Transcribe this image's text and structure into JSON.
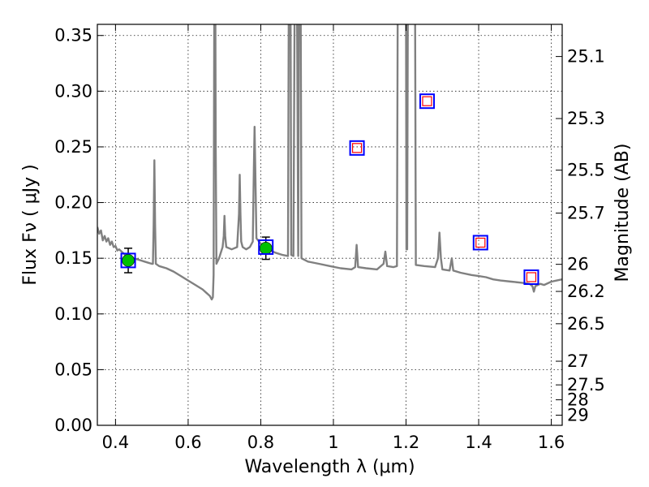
{
  "chart_data": {
    "type": "scatter",
    "xlabel": "Wavelength  λ (μm)",
    "ylabel": "Flux  Fν  ( μJy )",
    "ylabel_right": "Magnitude (AB)",
    "xlim": [
      0.35,
      1.63
    ],
    "ylim": [
      0.0,
      0.36
    ],
    "grid": true,
    "x_ticks": [
      0.4,
      0.6,
      0.8,
      1.0,
      1.2,
      1.4,
      1.6
    ],
    "x_tick_labels": [
      "0.4",
      "0.6",
      "0.8",
      "1",
      "1.2",
      "1.4",
      "1.6"
    ],
    "y_ticks": [
      0.0,
      0.05,
      0.1,
      0.15,
      0.2,
      0.25,
      0.3,
      0.35
    ],
    "y_tick_labels": [
      "0.00",
      "0.05",
      "0.10",
      "0.15",
      "0.20",
      "0.25",
      "0.30",
      "0.35"
    ],
    "right_ticks": [
      {
        "mag": 25.1,
        "label": "25.1"
      },
      {
        "mag": 25.3,
        "label": "25.3"
      },
      {
        "mag": 25.5,
        "label": "25.5"
      },
      {
        "mag": 25.7,
        "label": "25.7"
      },
      {
        "mag": 26.0,
        "label": "26"
      },
      {
        "mag": 26.2,
        "label": "26.2"
      },
      {
        "mag": 26.5,
        "label": "26.5"
      },
      {
        "mag": 27.0,
        "label": "27"
      },
      {
        "mag": 27.5,
        "label": "27.5"
      },
      {
        "mag": 28.0,
        "label": "28"
      },
      {
        "mag": 29.0,
        "label": "29"
      }
    ],
    "template_spectrum": {
      "color": "#808080",
      "points": [
        [
          0.35,
          0.178
        ],
        [
          0.355,
          0.172
        ],
        [
          0.36,
          0.175
        ],
        [
          0.365,
          0.166
        ],
        [
          0.37,
          0.17
        ],
        [
          0.375,
          0.165
        ],
        [
          0.38,
          0.168
        ],
        [
          0.385,
          0.162
        ],
        [
          0.39,
          0.165
        ],
        [
          0.395,
          0.16
        ],
        [
          0.4,
          0.161
        ],
        [
          0.405,
          0.157
        ],
        [
          0.41,
          0.158
        ],
        [
          0.42,
          0.155
        ],
        [
          0.43,
          0.152
        ],
        [
          0.44,
          0.151
        ],
        [
          0.45,
          0.15
        ],
        [
          0.46,
          0.149
        ],
        [
          0.47,
          0.148
        ],
        [
          0.48,
          0.147
        ],
        [
          0.49,
          0.146
        ],
        [
          0.5,
          0.145
        ],
        [
          0.503,
          0.145
        ],
        [
          0.505,
          0.18
        ],
        [
          0.507,
          0.238
        ],
        [
          0.509,
          0.18
        ],
        [
          0.511,
          0.145
        ],
        [
          0.52,
          0.143
        ],
        [
          0.54,
          0.141
        ],
        [
          0.56,
          0.138
        ],
        [
          0.58,
          0.134
        ],
        [
          0.6,
          0.13
        ],
        [
          0.62,
          0.126
        ],
        [
          0.64,
          0.122
        ],
        [
          0.66,
          0.116
        ],
        [
          0.665,
          0.113
        ],
        [
          0.668,
          0.115
        ],
        [
          0.67,
          0.135
        ],
        [
          0.671,
          0.25
        ],
        [
          0.672,
          0.365
        ],
        [
          0.675,
          0.365
        ],
        [
          0.676,
          0.25
        ],
        [
          0.678,
          0.145
        ],
        [
          0.685,
          0.15
        ],
        [
          0.69,
          0.155
        ],
        [
          0.695,
          0.16
        ],
        [
          0.698,
          0.17
        ],
        [
          0.7,
          0.188
        ],
        [
          0.702,
          0.17
        ],
        [
          0.705,
          0.16
        ],
        [
          0.72,
          0.158
        ],
        [
          0.735,
          0.16
        ],
        [
          0.74,
          0.19
        ],
        [
          0.742,
          0.225
        ],
        [
          0.744,
          0.19
        ],
        [
          0.746,
          0.165
        ],
        [
          0.75,
          0.16
        ],
        [
          0.76,
          0.158
        ],
        [
          0.77,
          0.16
        ],
        [
          0.778,
          0.165
        ],
        [
          0.781,
          0.23
        ],
        [
          0.783,
          0.268
        ],
        [
          0.785,
          0.23
        ],
        [
          0.788,
          0.168
        ],
        [
          0.8,
          0.163
        ],
        [
          0.82,
          0.158
        ],
        [
          0.84,
          0.155
        ],
        [
          0.86,
          0.153
        ],
        [
          0.875,
          0.152
        ],
        [
          0.877,
          0.365
        ],
        [
          0.882,
          0.365
        ],
        [
          0.884,
          0.153
        ],
        [
          0.89,
          0.152
        ],
        [
          0.893,
          0.365
        ],
        [
          0.9,
          0.365
        ],
        [
          0.903,
          0.152
        ],
        [
          0.905,
          0.365
        ],
        [
          0.91,
          0.365
        ],
        [
          0.912,
          0.15
        ],
        [
          0.93,
          0.147
        ],
        [
          0.96,
          0.145
        ],
        [
          0.99,
          0.143
        ],
        [
          1.02,
          0.141
        ],
        [
          1.05,
          0.14
        ],
        [
          1.06,
          0.142
        ],
        [
          1.064,
          0.162
        ],
        [
          1.068,
          0.142
        ],
        [
          1.09,
          0.141
        ],
        [
          1.12,
          0.14
        ],
        [
          1.138,
          0.145
        ],
        [
          1.143,
          0.156
        ],
        [
          1.148,
          0.143
        ],
        [
          1.165,
          0.142
        ],
        [
          1.175,
          0.143
        ],
        [
          1.177,
          0.365
        ],
        [
          1.2,
          0.365
        ],
        [
          1.201,
          0.158
        ],
        [
          1.203,
          0.158
        ],
        [
          1.205,
          0.365
        ],
        [
          1.225,
          0.365
        ],
        [
          1.227,
          0.144
        ],
        [
          1.25,
          0.143
        ],
        [
          1.28,
          0.142
        ],
        [
          1.288,
          0.15
        ],
        [
          1.292,
          0.173
        ],
        [
          1.296,
          0.15
        ],
        [
          1.3,
          0.14
        ],
        [
          1.32,
          0.139
        ],
        [
          1.326,
          0.15
        ],
        [
          1.33,
          0.139
        ],
        [
          1.35,
          0.137
        ],
        [
          1.38,
          0.135
        ],
        [
          1.4,
          0.134
        ],
        [
          1.42,
          0.133
        ],
        [
          1.44,
          0.131
        ],
        [
          1.46,
          0.13
        ],
        [
          1.49,
          0.129
        ],
        [
          1.52,
          0.128
        ],
        [
          1.54,
          0.127
        ],
        [
          1.548,
          0.125
        ],
        [
          1.552,
          0.12
        ],
        [
          1.556,
          0.125
        ],
        [
          1.57,
          0.127
        ],
        [
          1.58,
          0.126
        ],
        [
          1.6,
          0.129
        ],
        [
          1.615,
          0.13
        ],
        [
          1.63,
          0.131
        ]
      ]
    },
    "series": [
      {
        "marker": "filled-circle",
        "color": "#00c000",
        "points": [
          {
            "x": 0.435,
            "y": 0.148,
            "err": 0.011
          },
          {
            "x": 0.814,
            "y": 0.159,
            "err": 0.01
          }
        ]
      },
      {
        "marker": "open-square",
        "color": "#0000ff",
        "points": [
          {
            "x": 0.435,
            "y": 0.148
          },
          {
            "x": 0.814,
            "y": 0.16
          },
          {
            "x": 1.065,
            "y": 0.249
          },
          {
            "x": 1.258,
            "y": 0.291
          },
          {
            "x": 1.405,
            "y": 0.164
          },
          {
            "x": 1.545,
            "y": 0.133
          }
        ]
      },
      {
        "marker": "open-square-small",
        "color": "#ff0000",
        "points": [
          {
            "x": 1.065,
            "y": 0.249
          },
          {
            "x": 1.258,
            "y": 0.291
          },
          {
            "x": 1.405,
            "y": 0.164
          },
          {
            "x": 1.545,
            "y": 0.133
          }
        ]
      }
    ]
  }
}
